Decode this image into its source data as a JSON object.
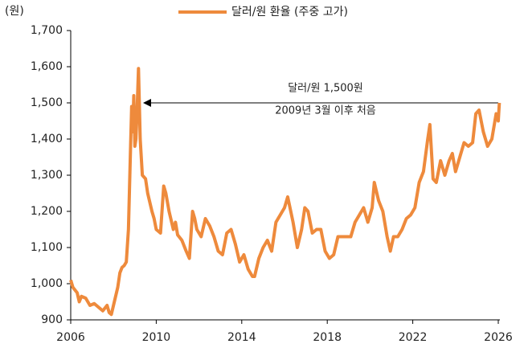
{
  "chart_data": {
    "type": "line",
    "y_label": "(원)",
    "annotations": [
      "달러/원 1,500원",
      "2009년 3월 이후 처음"
    ],
    "x": [
      2006.0,
      2006.1,
      2006.3,
      2006.4,
      2006.5,
      2006.7,
      2006.9,
      2007.1,
      2007.3,
      2007.5,
      2007.7,
      2007.8,
      2007.9,
      2008.0,
      2008.2,
      2008.3,
      2008.4,
      2008.5,
      2008.6,
      2008.7,
      2008.8,
      2008.85,
      2008.9,
      2008.95,
      2009.0,
      2009.05,
      2009.1,
      2009.17,
      2009.25,
      2009.35,
      2009.5,
      2009.6,
      2009.8,
      2009.9,
      2010.0,
      2010.2,
      2010.35,
      2010.45,
      2010.6,
      2010.8,
      2010.9,
      2011.0,
      2011.2,
      2011.4,
      2011.55,
      2011.7,
      2011.8,
      2011.9,
      2012.1,
      2012.3,
      2012.5,
      2012.7,
      2012.9,
      2013.1,
      2013.3,
      2013.5,
      2013.7,
      2013.9,
      2014.1,
      2014.3,
      2014.5,
      2014.6,
      2014.8,
      2015.0,
      2015.2,
      2015.4,
      2015.6,
      2015.8,
      2016.0,
      2016.15,
      2016.4,
      2016.6,
      2016.8,
      2016.95,
      2017.1,
      2017.3,
      2017.5,
      2017.7,
      2017.9,
      2018.1,
      2018.3,
      2018.5,
      2018.7,
      2018.9,
      2019.1,
      2019.3,
      2019.5,
      2019.7,
      2019.9,
      2020.1,
      2020.2,
      2020.4,
      2020.6,
      2020.8,
      2020.95,
      2021.1,
      2021.3,
      2021.5,
      2021.7,
      2021.9,
      2022.1,
      2022.3,
      2022.5,
      2022.7,
      2022.8,
      2022.95,
      2023.1,
      2023.3,
      2023.5,
      2023.7,
      2023.85,
      2024.0,
      2024.2,
      2024.4,
      2024.6,
      2024.8,
      2024.95,
      2025.1,
      2025.3,
      2025.5,
      2025.7,
      2025.9,
      2026.0,
      2026.05
    ],
    "series": [
      {
        "name": "달러/원 환율 (주중 고가)",
        "color": "#ee8a3c",
        "values": [
          1010,
          990,
          975,
          950,
          965,
          960,
          940,
          945,
          935,
          925,
          940,
          920,
          915,
          940,
          990,
          1030,
          1045,
          1050,
          1060,
          1150,
          1380,
          1490,
          1420,
          1520,
          1380,
          1400,
          1470,
          1595,
          1400,
          1300,
          1290,
          1250,
          1200,
          1180,
          1150,
          1140,
          1270,
          1250,
          1200,
          1150,
          1170,
          1135,
          1120,
          1090,
          1070,
          1200,
          1180,
          1150,
          1130,
          1180,
          1160,
          1130,
          1090,
          1080,
          1140,
          1150,
          1110,
          1060,
          1080,
          1040,
          1020,
          1020,
          1070,
          1100,
          1120,
          1090,
          1170,
          1190,
          1210,
          1240,
          1170,
          1100,
          1150,
          1210,
          1200,
          1140,
          1150,
          1150,
          1090,
          1070,
          1080,
          1130,
          1130,
          1130,
          1130,
          1170,
          1190,
          1210,
          1170,
          1210,
          1280,
          1230,
          1200,
          1130,
          1090,
          1130,
          1130,
          1150,
          1180,
          1190,
          1210,
          1280,
          1310,
          1400,
          1440,
          1290,
          1280,
          1340,
          1300,
          1340,
          1360,
          1310,
          1350,
          1390,
          1380,
          1390,
          1470,
          1480,
          1420,
          1380,
          1400,
          1470,
          1450,
          1500
        ]
      }
    ],
    "xlim": [
      2006,
      2026
    ],
    "xticks": [
      2006,
      2010,
      2014,
      2018,
      2022,
      2026
    ],
    "ylim": [
      900,
      1700
    ],
    "yticks": [
      900,
      {
        "value": 1000,
        "label": "1,000"
      },
      {
        "value": 1100,
        "label": "1,100"
      },
      {
        "value": 1200,
        "label": "1,200"
      },
      {
        "value": 1300,
        "label": "1,300"
      },
      {
        "value": 1400,
        "label": "1,400"
      },
      {
        "value": 1500,
        "label": "1,500"
      },
      {
        "value": 1600,
        "label": "1,600"
      },
      {
        "value": 1700,
        "label": "1,700"
      }
    ],
    "grid": false
  }
}
